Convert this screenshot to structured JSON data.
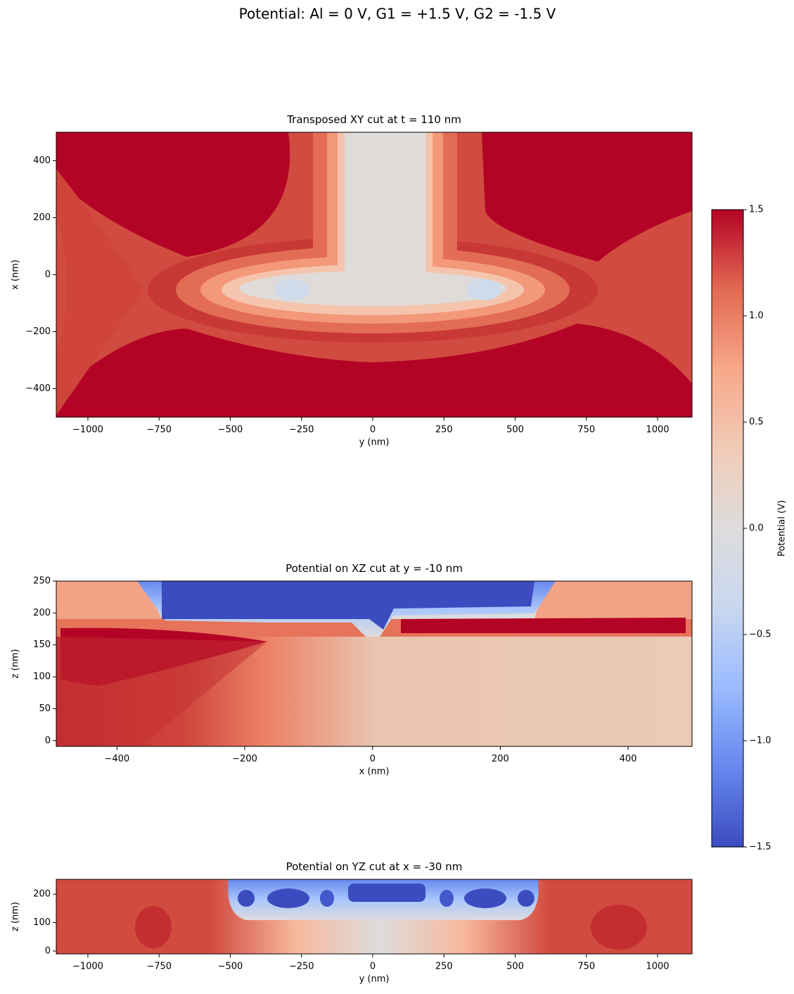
{
  "title": "Potential: Al = 0 V, G1 = +1.5 V, G2 = -1.5 V",
  "chart_data": [
    {
      "type": "contour",
      "title": "Transposed XY cut at t = 110 nm",
      "xlabel": "y (nm)",
      "ylabel": "x (nm)",
      "xlim": [
        -1111,
        1121
      ],
      "ylim": [
        -500,
        500
      ],
      "xticks": [
        {
          "value": -1000,
          "label": "−1000"
        },
        {
          "value": -750,
          "label": "−750"
        },
        {
          "value": -500,
          "label": "−500"
        },
        {
          "value": -250,
          "label": "−250"
        },
        0,
        250,
        500,
        750,
        1000
      ],
      "yticks": [
        {
          "value": -400,
          "label": "−400"
        },
        {
          "value": -200,
          "label": "−200"
        },
        0,
        200,
        400
      ]
    },
    {
      "type": "contour",
      "title": "Potential on XZ cut at y = -10 nm",
      "xlabel": "x (nm)",
      "ylabel": "z (nm)",
      "xlim": [
        -495,
        500
      ],
      "ylim": [
        -9,
        250
      ],
      "xticks": [
        {
          "value": -400,
          "label": "−400"
        },
        {
          "value": -200,
          "label": "−200"
        },
        0,
        200,
        400
      ],
      "yticks": [
        0,
        50,
        100,
        150,
        200,
        250
      ]
    },
    {
      "type": "contour",
      "title": "Potential on YZ cut at x = -30 nm",
      "xlabel": "y (nm)",
      "ylabel": "z (nm)",
      "xlim": [
        -1111,
        1121
      ],
      "ylim": [
        -10,
        252
      ],
      "xticks": [
        {
          "value": -1000,
          "label": "−1000"
        },
        {
          "value": -750,
          "label": "−750"
        },
        {
          "value": -500,
          "label": "−500"
        },
        {
          "value": -250,
          "label": "−250"
        },
        0,
        250,
        500,
        750,
        1000
      ],
      "yticks": [
        0,
        100,
        200
      ]
    }
  ],
  "colorbar": {
    "label": "Potential (V)",
    "cmap": "coolwarm",
    "lim": [
      -1.5,
      1.5
    ],
    "ticks": [
      {
        "value": -1.5,
        "label": "−1.5"
      },
      {
        "value": -1.0,
        "label": "−1.0"
      },
      {
        "value": -0.5,
        "label": "−0.5"
      },
      {
        "value": 0.0,
        "label": "0.0"
      },
      0.5,
      {
        "value": 1.0,
        "label": "1.0"
      },
      1.5
    ]
  }
}
